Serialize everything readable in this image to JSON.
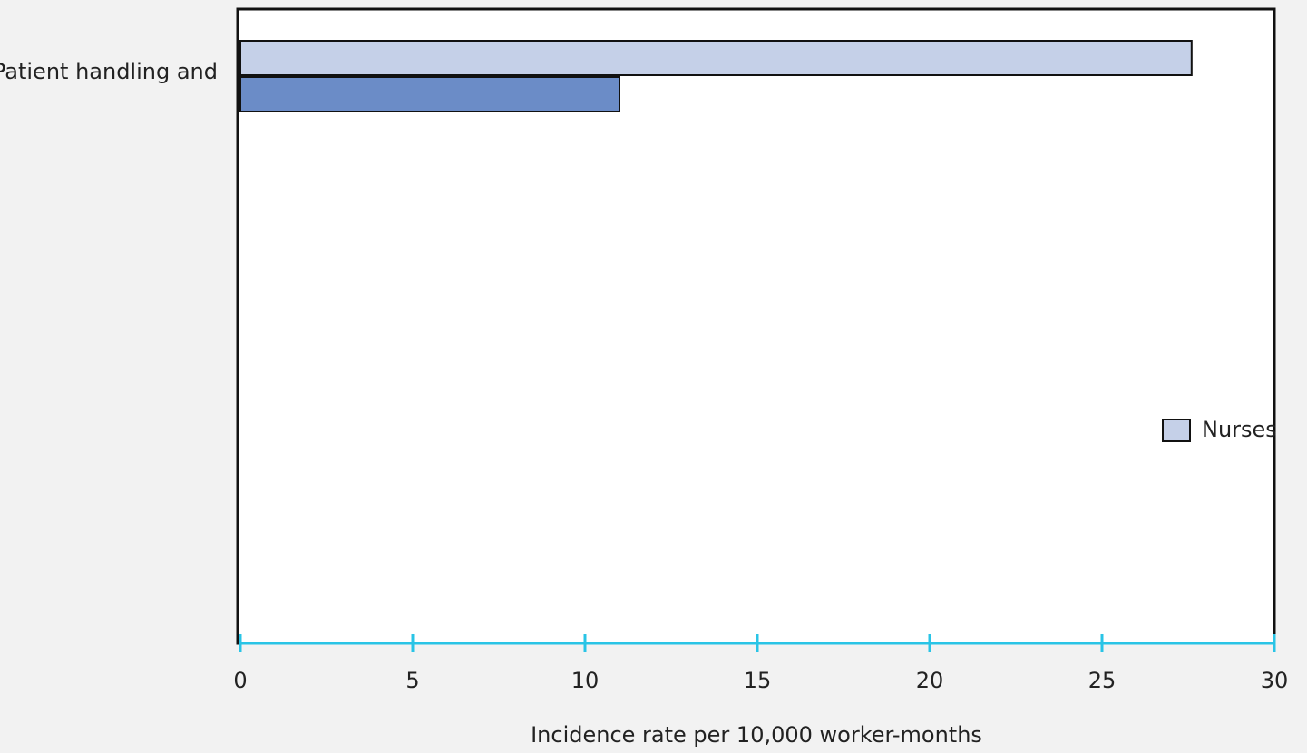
{
  "chart_data": {
    "type": "barh",
    "categories": [
      "Patient handling and"
    ],
    "series": [
      {
        "name": "Nurses",
        "color": "#c5d0e8",
        "values": [
          27.6
        ]
      },
      {
        "color": "#6b8cc7",
        "values": [
          11
        ]
      }
    ],
    "xlim": [
      0,
      30
    ],
    "xticks": [
      0,
      5,
      10,
      15,
      20,
      25,
      30
    ],
    "xlabel": "Incidence rate per 10,000 worker-months"
  }
}
